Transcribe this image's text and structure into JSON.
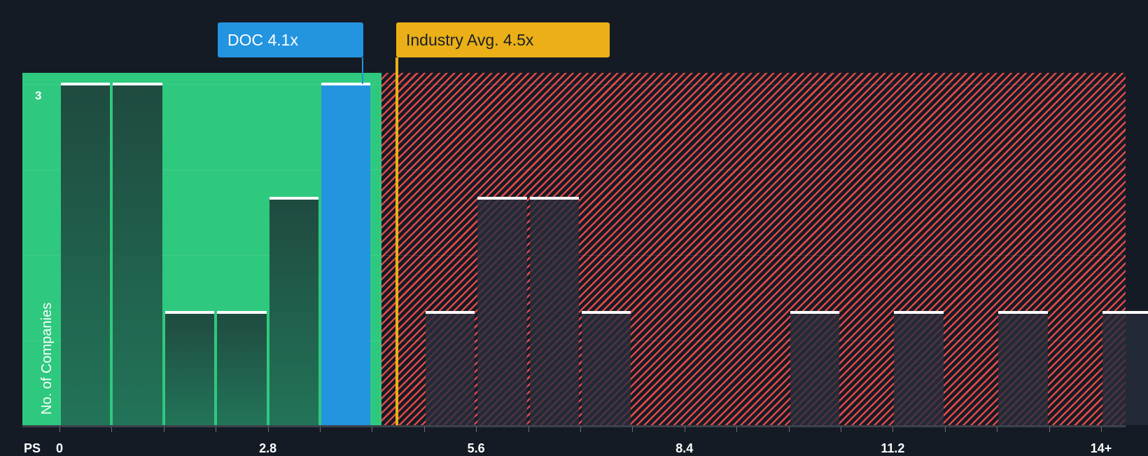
{
  "chart_data": {
    "type": "bar",
    "title": "",
    "xlabel": "PS",
    "ylabel": "No. of Companies",
    "x_tick_labels": [
      "0",
      "2.8",
      "5.6",
      "8.4",
      "11.2",
      "14+"
    ],
    "y_tick_labels": [
      "3"
    ],
    "ylim": [
      0,
      3
    ],
    "bin_width": 0.7,
    "categories": [
      "0-0.7",
      "0.7-1.4",
      "1.4-2.1",
      "2.1-2.8",
      "2.8-3.5",
      "3.5-4.2",
      "4.2-4.9",
      "4.9-5.6",
      "5.6-6.3",
      "6.3-7.0",
      "7.0-7.7",
      "7.7-8.4",
      "8.4-9.1",
      "9.1-9.8",
      "9.8-10.5",
      "10.5-11.2",
      "11.2-11.9",
      "11.9-12.6",
      "12.6-13.3",
      "13.3-14.0",
      "14+"
    ],
    "values": [
      3,
      3,
      1,
      1,
      2,
      3,
      0,
      1,
      2,
      2,
      1,
      0,
      0,
      0,
      1,
      0,
      1,
      0,
      1,
      0,
      1
    ],
    "highlight": {
      "label": "DOC",
      "value": 4.1,
      "bin_index": 5
    },
    "reference_line": {
      "label": "Industry Avg.",
      "value": 4.5
    },
    "zones": [
      {
        "name": "below-industry",
        "from": 0,
        "to": 4.5,
        "color": "#2ec97e"
      },
      {
        "name": "above-industry",
        "from": 4.5,
        "to": 14.7,
        "color": "#e04848",
        "pattern": "hatched"
      }
    ],
    "grid": true,
    "legend": null
  },
  "callouts": {
    "company": "DOC 4.1x",
    "industry": "Industry Avg. 4.5x"
  },
  "axis": {
    "x_prefix": "PS",
    "y_label": "No. of Companies",
    "y_top_tick": "3"
  },
  "colors": {
    "background": "#151b24",
    "green_zone": "#2ec97e",
    "company_bar": "#2394e0",
    "industry_line": "#ebb017",
    "hatch": "#e04848"
  }
}
